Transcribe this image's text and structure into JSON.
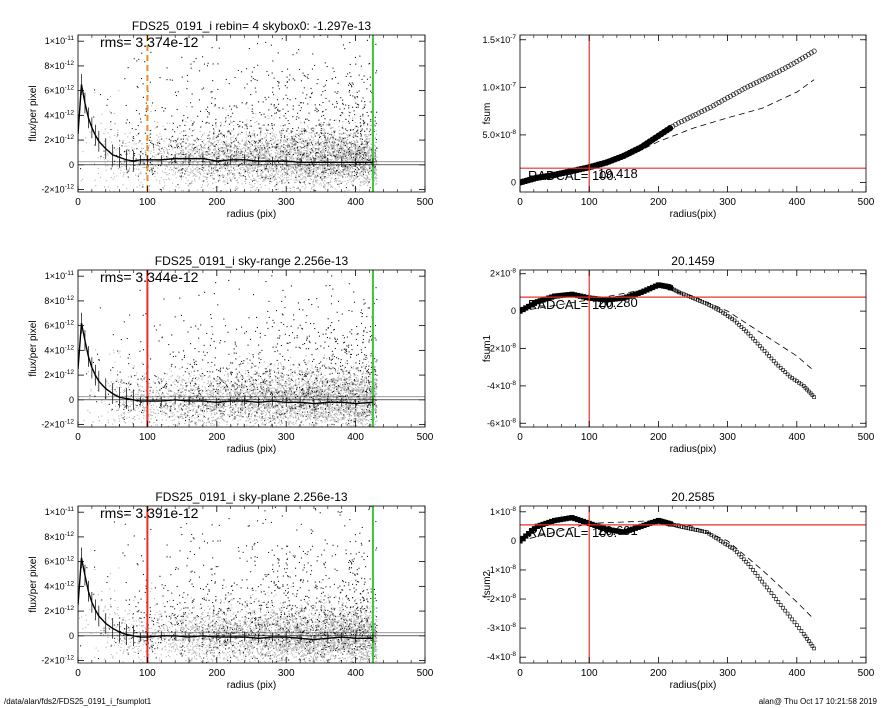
{
  "footer": {
    "path": "/data/alan/fds2/FDS25_0191_i_fsumplot1",
    "user_date": "alan@  Thu Oct 17 10:21:58 2019"
  },
  "colors": {
    "scatter_light": "#b4b4b4",
    "scatter_dark": "#1a1a1a",
    "red": "#e8302a",
    "green": "#3ac83a",
    "orange": "#e8902a"
  },
  "chart_data": [
    {
      "id": "flux1",
      "type": "scatter",
      "title": "FDS25_0191_i rebin= 4    skybox0: -1.297e-13",
      "annotation": "rms= 3.374e-12",
      "xlabel": "radius (pix)",
      "ylabel": "flux/per pixel",
      "xlim": [
        0,
        500
      ],
      "ylim": [
        -2.2e-12,
        1.05e-11
      ],
      "xticks": [
        0,
        100,
        200,
        300,
        400,
        500
      ],
      "yticks": [
        -2e-12,
        0,
        2e-12,
        4e-12,
        6e-12,
        8e-12,
        1e-11
      ],
      "ytick_labels": [
        "-2×10-12",
        "0",
        "2×10-12",
        "4×10-12",
        "6×10-12",
        "8×10-12",
        "1×10-11"
      ],
      "vlines": [
        {
          "x": 100,
          "color": "orange",
          "style": "dashed"
        },
        {
          "x": 425,
          "color": "green",
          "style": "solid"
        }
      ],
      "hlines": [
        0
      ],
      "profile": {
        "x": [
          0,
          5,
          10,
          15,
          20,
          25,
          30,
          40,
          50,
          60,
          70,
          80,
          90,
          100,
          120,
          140,
          160,
          180,
          200,
          220,
          240,
          260,
          280,
          300,
          320,
          340,
          360,
          380,
          400,
          425
        ],
        "y": [
          2.5e-12,
          6.5e-12,
          5e-12,
          3.8e-12,
          3e-12,
          2.4e-12,
          1.9e-12,
          1.3e-12,
          8e-13,
          6e-13,
          4e-13,
          3e-13,
          4e-13,
          4e-13,
          4e-13,
          5e-13,
          5e-13,
          5e-13,
          3e-13,
          4e-13,
          4e-13,
          3e-13,
          3e-13,
          3e-13,
          2e-13,
          2e-13,
          2e-13,
          2e-13,
          2e-13,
          2e-13
        ]
      },
      "scatter_hint": {
        "center": 5e-13,
        "band": 2.2e-12,
        "scatter_spread": 1e-11
      }
    },
    {
      "id": "fsum",
      "type": "line",
      "title": "",
      "xlabel": "radius(pix)",
      "ylabel": "fsum",
      "xlim": [
        0,
        500
      ],
      "ylim": [
        -1e-08,
        1.55e-07
      ],
      "xticks": [
        0,
        100,
        200,
        300,
        400,
        500
      ],
      "yticks": [
        0,
        5e-08,
        1e-07,
        1.5e-07
      ],
      "ytick_labels": [
        "0",
        "5.0×10-8",
        "1.0×10-7",
        "1.5×10-7"
      ],
      "vlines": [
        {
          "x": 100,
          "color": "red",
          "style": "solid"
        }
      ],
      "hlines": [
        {
          "y": 1.5e-08,
          "color": "red"
        }
      ],
      "overlay_text": [
        "19.418",
        "RADCAL= 100."
      ],
      "circles": {
        "x": [
          0,
          25,
          50,
          75,
          100,
          125,
          150,
          175,
          200,
          225,
          250,
          275,
          300,
          325,
          350,
          375,
          400,
          425
        ],
        "y": [
          0,
          5e-09,
          8e-09,
          1.2e-08,
          1.6e-08,
          2.1e-08,
          2.8e-08,
          3.7e-08,
          4.9e-08,
          6.1e-08,
          7e-08,
          7.9e-08,
          8.9e-08,
          9.9e-08,
          1.08e-07,
          1.17e-07,
          1.27e-07,
          1.38e-07
        ]
      },
      "dashed": {
        "x": [
          0,
          50,
          100,
          150,
          200,
          250,
          300,
          350,
          400,
          425
        ],
        "y": [
          0,
          8e-09,
          1.5e-08,
          2.5e-08,
          4.3e-08,
          5.7e-08,
          6.8e-08,
          7.8e-08,
          9.5e-08,
          1.08e-07
        ]
      }
    },
    {
      "id": "flux2",
      "type": "scatter",
      "title": "FDS25_0191_i sky-range  2.256e-13",
      "annotation": "rms= 3.344e-12",
      "xlabel": "radius (pix)",
      "ylabel": "flux/per pixel",
      "xlim": [
        0,
        500
      ],
      "ylim": [
        -2.2e-12,
        1.05e-11
      ],
      "xticks": [
        0,
        100,
        200,
        300,
        400,
        500
      ],
      "yticks": [
        -2e-12,
        0,
        2e-12,
        4e-12,
        6e-12,
        8e-12,
        1e-11
      ],
      "ytick_labels": [
        "-2×10-12",
        "0",
        "2×10-12",
        "4×10-12",
        "6×10-12",
        "8×10-12",
        "1×10-11"
      ],
      "vlines": [
        {
          "x": 100,
          "color": "red",
          "style": "solid"
        },
        {
          "x": 425,
          "color": "green",
          "style": "solid"
        }
      ],
      "hlines": [
        0
      ],
      "profile": {
        "x": [
          0,
          5,
          10,
          15,
          20,
          25,
          30,
          40,
          50,
          60,
          70,
          80,
          90,
          100,
          120,
          140,
          160,
          180,
          200,
          220,
          240,
          260,
          280,
          300,
          320,
          340,
          360,
          380,
          400,
          425
        ],
        "y": [
          2.5e-12,
          6.2e-12,
          4.8e-12,
          3.5e-12,
          2.6e-12,
          2e-12,
          1.5e-12,
          9e-13,
          5e-13,
          2e-13,
          1e-13,
          0,
          -1e-13,
          -1e-13,
          -1e-13,
          0,
          -1e-13,
          -1e-13,
          -2e-13,
          -1e-13,
          -1e-13,
          -2e-13,
          -1e-13,
          -2e-13,
          -2e-13,
          -3e-13,
          -2e-13,
          -2e-13,
          -3e-13,
          -2e-13
        ]
      },
      "scatter_hint": {
        "center": 0,
        "band": 2.2e-12,
        "scatter_spread": 1e-11
      }
    },
    {
      "id": "fsum1",
      "type": "line",
      "title": "20.1459",
      "xlabel": "radius(pix)",
      "ylabel": "fsum1",
      "xlim": [
        0,
        500
      ],
      "ylim": [
        -6.2e-08,
        2.2e-08
      ],
      "xticks": [
        0,
        100,
        200,
        300,
        400,
        500
      ],
      "yticks": [
        -6e-08,
        -4e-08,
        -2e-08,
        0,
        2e-08
      ],
      "ytick_labels": [
        "-6×10-8",
        "-4×10-8",
        "-2×10-8",
        "0",
        "2×10-8"
      ],
      "vlines": [
        {
          "x": 100,
          "color": "red",
          "style": "solid"
        }
      ],
      "hlines": [
        {
          "y": 7.5e-09,
          "color": "red"
        }
      ],
      "overlay_text": [
        "20.280",
        "RADCAL= 100."
      ],
      "squares": {
        "x": [
          0,
          25,
          50,
          75,
          100,
          125,
          150,
          175,
          200,
          215,
          230,
          250,
          270,
          290,
          310,
          330,
          350,
          370,
          390,
          410,
          425
        ],
        "y": [
          0,
          5e-09,
          8e-09,
          9e-09,
          7e-09,
          6e-09,
          7e-09,
          1e-08,
          1.4e-08,
          1.3e-08,
          1e-08,
          7e-09,
          4e-09,
          0,
          -5e-09,
          -1.2e-08,
          -2e-08,
          -2.8e-08,
          -3.5e-08,
          -4e-08,
          -4.6e-08
        ]
      },
      "dashed": {
        "x": [
          0,
          100,
          200,
          250,
          300,
          350,
          400,
          425
        ],
        "y": [
          0,
          6e-09,
          1.3e-08,
          8e-09,
          0,
          -1.2e-08,
          -2.4e-08,
          -3.2e-08
        ]
      }
    },
    {
      "id": "flux3",
      "type": "scatter",
      "title": "FDS25_0191_i sky-plane  2.256e-13",
      "annotation": "rms= 3.391e-12",
      "xlabel": "radius (pix)",
      "ylabel": "flux/per pixel",
      "xlim": [
        0,
        500
      ],
      "ylim": [
        -2.2e-12,
        1.05e-11
      ],
      "xticks": [
        0,
        100,
        200,
        300,
        400,
        500
      ],
      "yticks": [
        -2e-12,
        0,
        2e-12,
        4e-12,
        6e-12,
        8e-12,
        1e-11
      ],
      "ytick_labels": [
        "-2×10-12",
        "0",
        "2×10-12",
        "4×10-12",
        "6×10-12",
        "8×10-12",
        "1×10-11"
      ],
      "vlines": [
        {
          "x": 100,
          "color": "red",
          "style": "solid"
        },
        {
          "x": 425,
          "color": "green",
          "style": "solid"
        }
      ],
      "hlines": [
        0
      ],
      "profile": {
        "x": [
          0,
          5,
          10,
          15,
          20,
          25,
          30,
          40,
          50,
          60,
          70,
          80,
          90,
          100,
          120,
          140,
          160,
          180,
          200,
          220,
          240,
          260,
          280,
          300,
          320,
          340,
          360,
          380,
          400,
          425
        ],
        "y": [
          2.5e-12,
          6.3e-12,
          4.9e-12,
          3.6e-12,
          2.7e-12,
          2.1e-12,
          1.6e-12,
          1e-12,
          6e-13,
          3e-13,
          1e-13,
          0,
          -1e-13,
          -1e-13,
          0,
          0,
          -1e-13,
          0,
          -1e-13,
          -1e-13,
          -1e-13,
          -2e-13,
          -1e-13,
          -1e-13,
          -2e-13,
          -3e-13,
          -2e-13,
          -1e-13,
          -2e-13,
          -2e-13
        ]
      },
      "scatter_hint": {
        "center": 0,
        "band": 2.2e-12,
        "scatter_spread": 1e-11
      }
    },
    {
      "id": "fsum2",
      "type": "line",
      "title": "20.2585",
      "xlabel": "radius(pix)",
      "ylabel": "fsum2",
      "xlim": [
        0,
        500
      ],
      "ylim": [
        -4.2e-08,
        1.2e-08
      ],
      "xticks": [
        0,
        100,
        200,
        300,
        400,
        500
      ],
      "yticks": [
        -4e-08,
        -3e-08,
        -2e-08,
        -1e-08,
        0,
        1e-08
      ],
      "ytick_labels": [
        "-4×10-8",
        "-3×10-8",
        "-2×10-8",
        "-1×10-8",
        "0",
        "1×10-8"
      ],
      "vlines": [
        {
          "x": 100,
          "color": "red",
          "style": "solid"
        }
      ],
      "hlines": [
        {
          "y": 5.5e-09,
          "color": "red"
        }
      ],
      "overlay_text": [
        "20.601",
        "RADCAL= 100."
      ],
      "squares": {
        "x": [
          0,
          25,
          50,
          75,
          100,
          125,
          150,
          175,
          200,
          215,
          230,
          250,
          270,
          290,
          310,
          330,
          350,
          370,
          390,
          410,
          425
        ],
        "y": [
          0,
          5e-09,
          7e-09,
          8e-09,
          6e-09,
          4e-09,
          3e-09,
          5e-09,
          7e-09,
          6e-09,
          5e-09,
          4e-09,
          3e-09,
          0,
          -3e-09,
          -8e-09,
          -1.4e-08,
          -2e-08,
          -2.6e-08,
          -3.2e-08,
          -3.7e-08
        ]
      },
      "dashed": {
        "x": [
          0,
          100,
          200,
          250,
          300,
          350,
          400,
          425
        ],
        "y": [
          0,
          6e-09,
          7e-09,
          5e-09,
          0,
          -1e-08,
          -2.1e-08,
          -2.7e-08
        ]
      }
    }
  ]
}
